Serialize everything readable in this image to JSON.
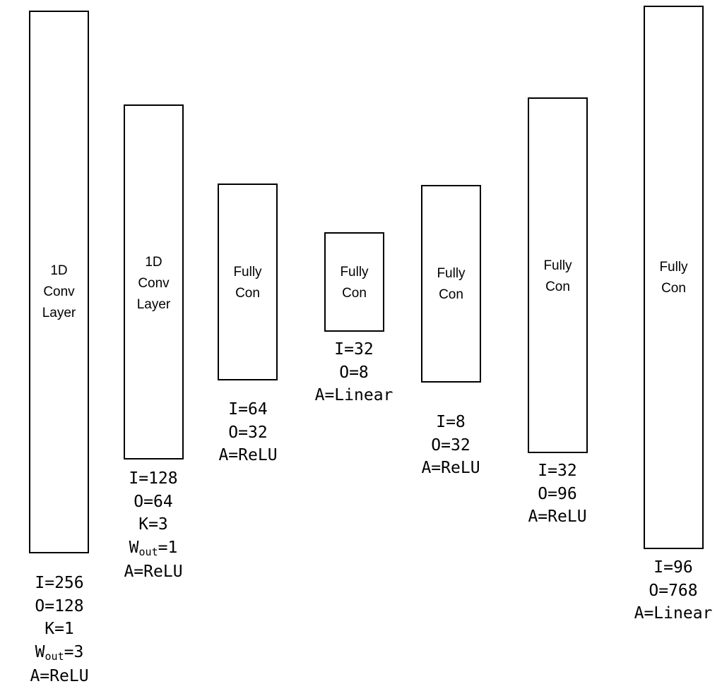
{
  "layers": [
    {
      "label_lines": [
        "1D",
        "Conv",
        "Layer"
      ],
      "params": {
        "i": "I=256",
        "o": "O=128",
        "k": "K=1",
        "w_main": "W",
        "w_sub": "out",
        "w_val": "=3",
        "a": "A=ReLU"
      }
    },
    {
      "label_lines": [
        "1D",
        "Conv",
        "Layer"
      ],
      "params": {
        "i": "I=128",
        "o": "O=64",
        "k": "K=3",
        "w_main": "W",
        "w_sub": "out",
        "w_val": "=1",
        "a": "A=ReLU"
      }
    },
    {
      "label_lines": [
        "Fully",
        "Con"
      ],
      "params": {
        "i": "I=64",
        "o": "O=32",
        "a": "A=ReLU"
      }
    },
    {
      "label_lines": [
        "Fully",
        "Con"
      ],
      "params": {
        "i": "I=32",
        "o": "O=8",
        "a": "A=Linear"
      }
    },
    {
      "label_lines": [
        "Fully",
        "Con"
      ],
      "params": {
        "i": "I=8",
        "o": "O=32",
        "a": "A=ReLU"
      }
    },
    {
      "label_lines": [
        "Fully",
        "Con"
      ],
      "params": {
        "i": "I=32",
        "o": "O=96",
        "a": "A=ReLU"
      }
    },
    {
      "label_lines": [
        "Fully",
        "Con"
      ],
      "params": {
        "i": "I=96",
        "o": "O=768",
        "a": "A=Linear"
      }
    }
  ]
}
